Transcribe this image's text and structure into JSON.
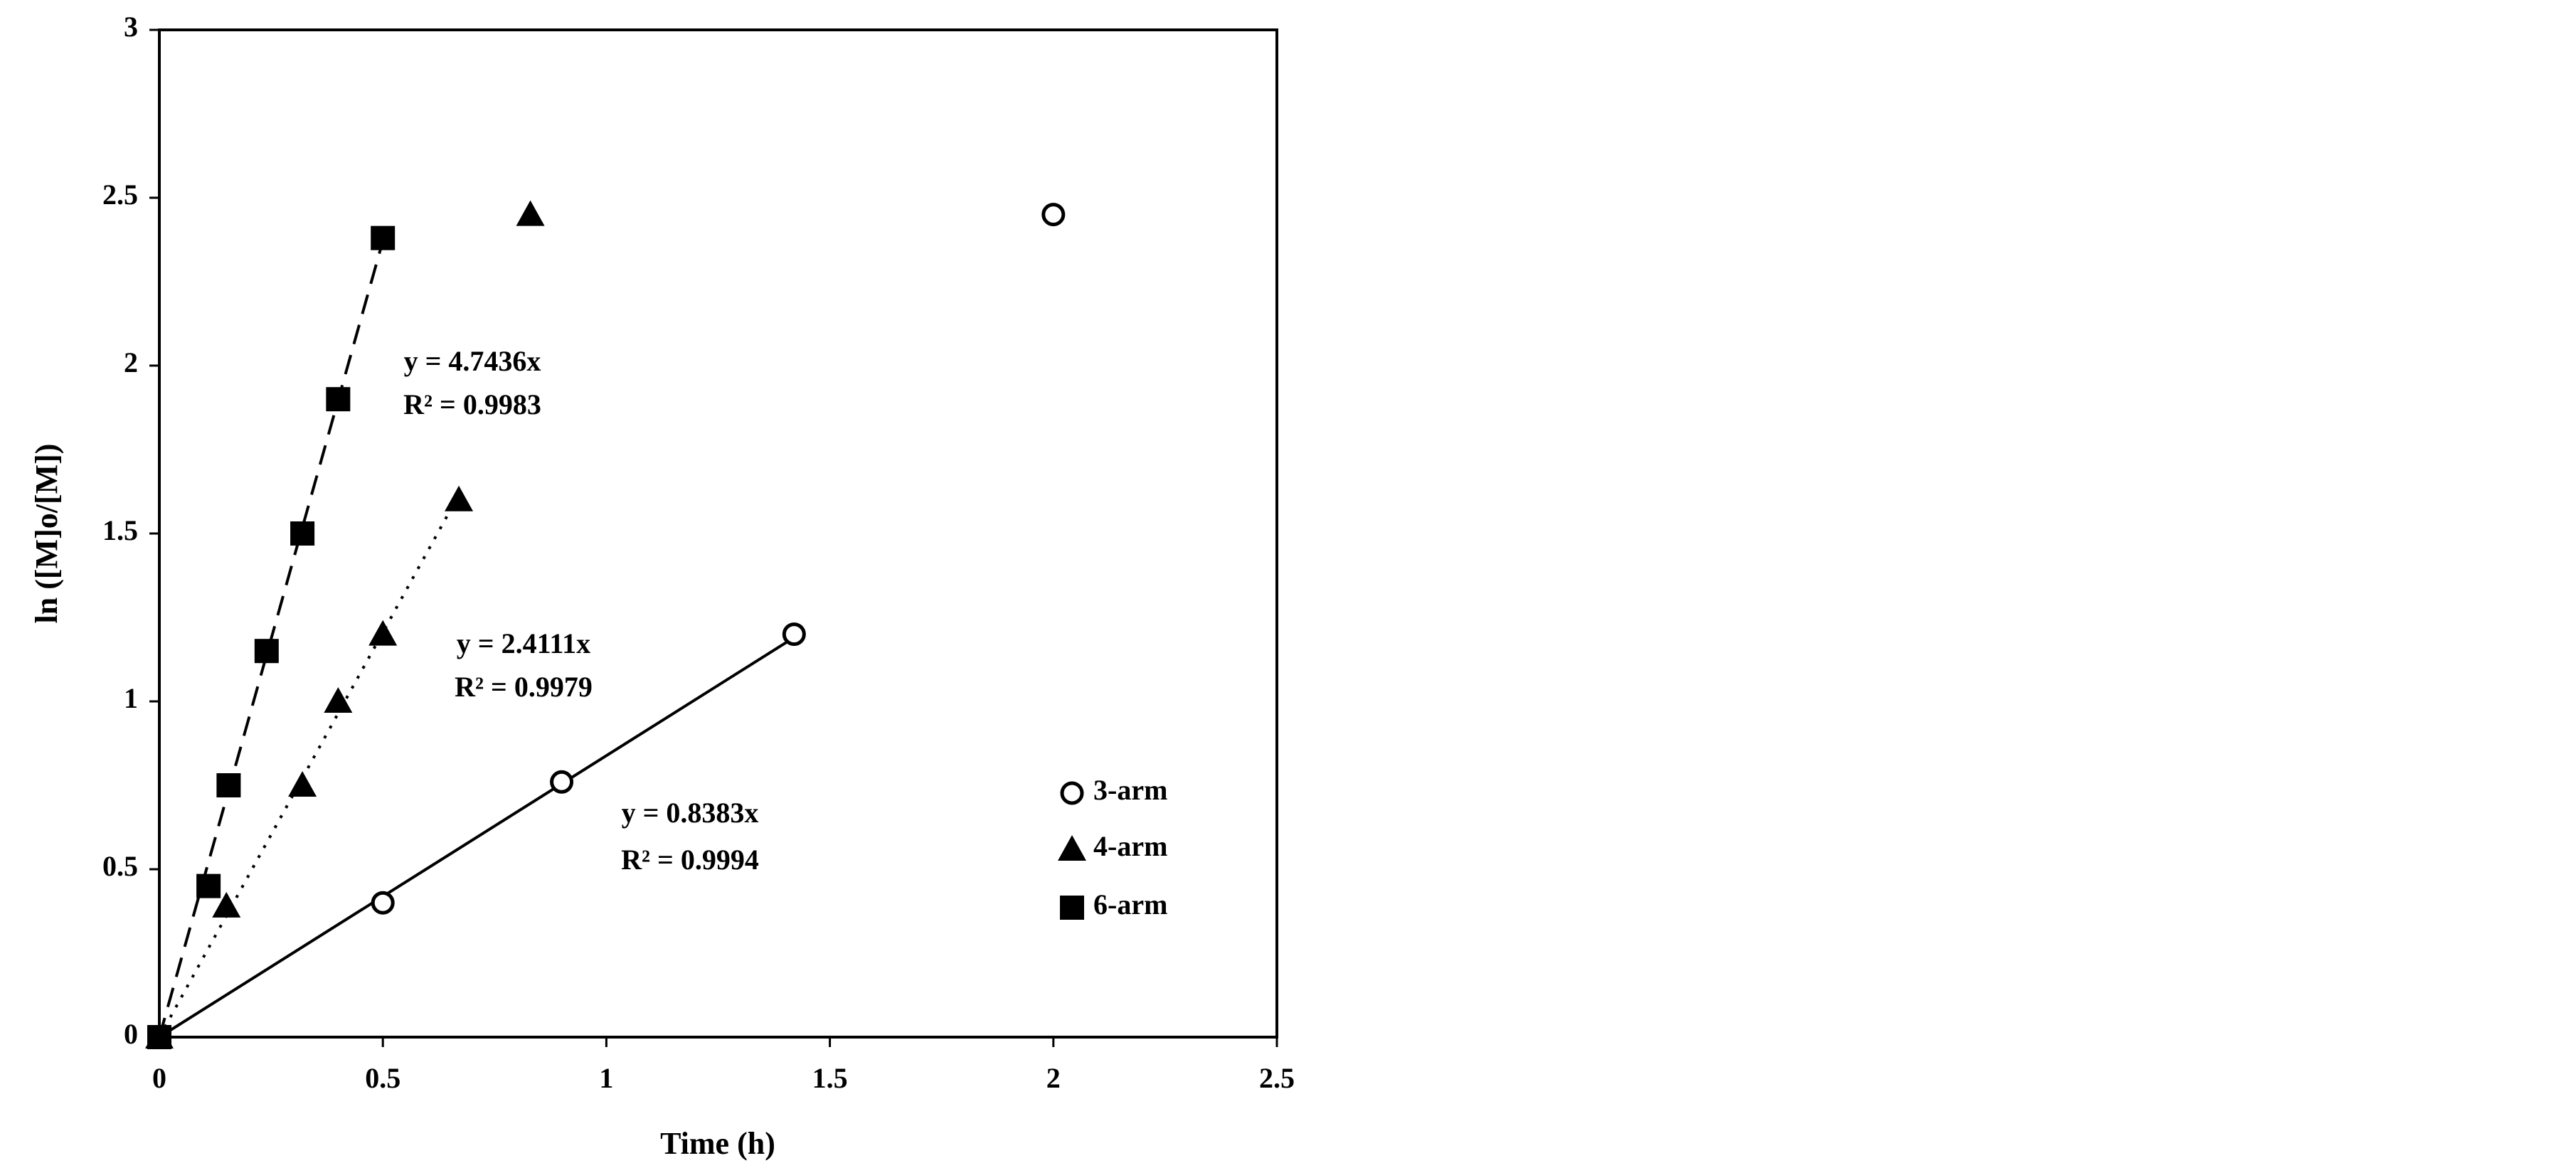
{
  "chart_data": {
    "type": "scatter",
    "x_label": "Time (h)",
    "y_label": "ln ([M]o/[M])",
    "xlim": [
      0,
      2.5
    ],
    "xticks": [
      0,
      0.5,
      1,
      1.5,
      2,
      2.5
    ],
    "ylim": [
      0,
      3
    ],
    "yticks": [
      0,
      0.5,
      1,
      1.5,
      2,
      2.5,
      3
    ],
    "legend": "lower right",
    "series": [
      {
        "name": "3-arm",
        "color": "#000000",
        "marker": "open-circle",
        "line_style": "solid",
        "x": [
          0,
          0.5,
          0.9,
          1.42,
          2.0
        ],
        "values": [
          0,
          0.4,
          0.76,
          1.2,
          2.45
        ],
        "trendline": {
          "slope": 0.8383,
          "x": [
            0,
            1.42
          ]
        },
        "equation": "y = 0.8383x",
        "r_squared": "R² = 0.9994"
      },
      {
        "name": "4-arm",
        "color": "#000000",
        "marker": "triangle",
        "line_style": "dotted",
        "x": [
          0,
          0.15,
          0.32,
          0.4,
          0.5,
          0.67,
          0.83
        ],
        "values": [
          0,
          0.39,
          0.75,
          1.0,
          1.2,
          1.6,
          2.45
        ],
        "trendline": {
          "slope": 2.4111,
          "x": [
            0,
            0.67
          ]
        },
        "equation": "y = 2.4111x",
        "r_squared": "R² = 0.9979"
      },
      {
        "name": "6-arm",
        "color": "#000000",
        "marker": "square",
        "line_style": "dashed",
        "x": [
          0,
          0.11,
          0.155,
          0.24,
          0.32,
          0.4,
          0.5
        ],
        "values": [
          0,
          0.45,
          0.75,
          1.15,
          1.5,
          1.9,
          2.38
        ],
        "trendline": {
          "slope": 4.7436,
          "x": [
            0,
            0.5
          ]
        },
        "equation": "y = 4.7436x",
        "r_squared": "R² = 0.9983"
      }
    ]
  }
}
